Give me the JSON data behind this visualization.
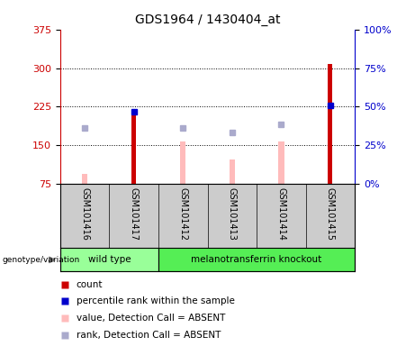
{
  "title": "GDS1964 / 1430404_at",
  "samples": [
    "GSM101416",
    "GSM101417",
    "GSM101412",
    "GSM101413",
    "GSM101414",
    "GSM101415"
  ],
  "ylim_left": [
    75,
    375
  ],
  "ylim_right": [
    0,
    100
  ],
  "yticks_left": [
    75,
    150,
    225,
    300,
    375
  ],
  "yticks_right": [
    0,
    25,
    50,
    75,
    100
  ],
  "count_values": [
    null,
    218,
    null,
    null,
    null,
    308
  ],
  "count_color": "#cc0000",
  "percentile_values": [
    null,
    215,
    null,
    null,
    null,
    228
  ],
  "percentile_color": "#0000cc",
  "absent_value_bars": [
    95,
    null,
    157,
    123,
    158,
    null
  ],
  "absent_value_color": "#ffbbbb",
  "absent_rank_dots": [
    183,
    null,
    183,
    175,
    190,
    null
  ],
  "absent_rank_color": "#aaaacc",
  "sample_area_bg": "#cccccc",
  "plot_bg": "#ffffff",
  "left_axis_color": "#cc0000",
  "right_axis_color": "#0000cc",
  "wt_color": "#99ff99",
  "ko_color": "#55ee55",
  "legend_items": [
    {
      "label": "count",
      "color": "#cc0000"
    },
    {
      "label": "percentile rank within the sample",
      "color": "#0000cc"
    },
    {
      "label": "value, Detection Call = ABSENT",
      "color": "#ffbbbb"
    },
    {
      "label": "rank, Detection Call = ABSENT",
      "color": "#aaaacc"
    }
  ],
  "bar_width": 0.12,
  "count_bar_width": 0.09,
  "dot_size": 4
}
